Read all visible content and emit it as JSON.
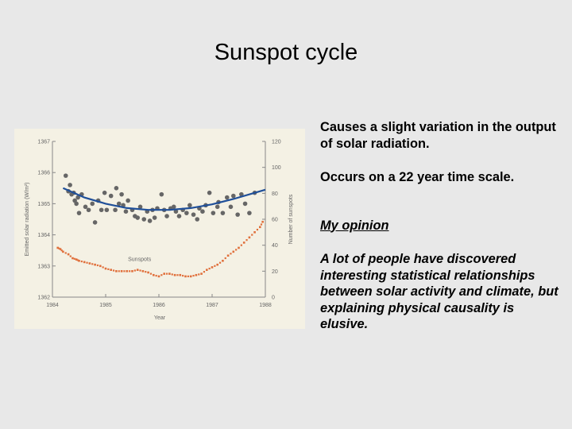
{
  "slide": {
    "title": "Sunspot cycle",
    "bullets": [
      "Causes a slight variation in the output of solar radiation.",
      "Occurs on a 22 year time scale."
    ],
    "opinion_heading": "My opinion",
    "opinion_text": "A lot of people have discovered interesting statistical relationships between solar activity and climate, but explaining physical causality is elusive."
  },
  "colors": {
    "radiation_line": "#1f4f99",
    "radiation_dots": "#666666",
    "sunspots": "#e0703c",
    "axis": "#888888",
    "panel_bg": "#f4f1e4"
  },
  "chart_data": {
    "type": "line",
    "title": "",
    "xlabel": "Year",
    "ylabel_left": "Emitted solar radiation (W/m²)",
    "ylabel_right": "Number of sunspots",
    "xlim": [
      1984,
      1988
    ],
    "ylim_left": [
      1362,
      1367
    ],
    "ylim_right": [
      0,
      120
    ],
    "x_ticks": [
      "1984",
      "1985",
      "1986",
      "1987",
      "1988"
    ],
    "y_ticks_left": [
      "1367",
      "1366",
      "1365",
      "1364",
      "1363",
      "1362"
    ],
    "y_ticks_right": [
      "120",
      "100",
      "80",
      "60",
      "40",
      "20",
      "0"
    ],
    "annotation": "Sunspots",
    "radiation_smooth": {
      "x": [
        1984.2,
        1984.6,
        1985.0,
        1985.4,
        1985.8,
        1986.2,
        1986.6,
        1987.0,
        1987.4,
        1987.8,
        1988.0
      ],
      "y": [
        1365.5,
        1365.2,
        1365.0,
        1364.86,
        1364.8,
        1364.8,
        1364.86,
        1364.98,
        1365.15,
        1365.35,
        1365.45
      ]
    },
    "radiation_observed": {
      "x": [
        1984.25,
        1984.3,
        1984.33,
        1984.36,
        1984.4,
        1984.42,
        1984.45,
        1984.48,
        1984.5,
        1984.55,
        1984.62,
        1984.68,
        1984.75,
        1984.8,
        1984.86,
        1984.92,
        1984.98,
        1985.02,
        1985.1,
        1985.18,
        1985.2,
        1985.25,
        1985.3,
        1985.33,
        1985.38,
        1985.42,
        1985.5,
        1985.55,
        1985.6,
        1985.65,
        1985.72,
        1985.78,
        1985.83,
        1985.88,
        1985.92,
        1985.97,
        1986.05,
        1986.1,
        1986.15,
        1986.22,
        1986.28,
        1986.32,
        1986.38,
        1986.45,
        1986.52,
        1986.58,
        1986.65,
        1986.72,
        1986.76,
        1986.82,
        1986.88,
        1986.95,
        1987.02,
        1987.1,
        1987.12,
        1987.2,
        1987.28,
        1987.35,
        1987.4,
        1987.48,
        1987.55,
        1987.62,
        1987.7,
        1987.8
      ],
      "y": [
        1365.9,
        1365.4,
        1365.6,
        1365.3,
        1365.35,
        1365.1,
        1365.0,
        1365.2,
        1364.7,
        1365.3,
        1364.9,
        1364.8,
        1365.0,
        1364.4,
        1365.1,
        1364.8,
        1365.35,
        1364.8,
        1365.25,
        1364.8,
        1365.5,
        1365.0,
        1365.3,
        1364.95,
        1364.75,
        1365.1,
        1364.8,
        1364.6,
        1364.55,
        1364.9,
        1364.5,
        1364.75,
        1364.45,
        1364.8,
        1364.55,
        1364.85,
        1365.3,
        1364.8,
        1364.6,
        1364.85,
        1364.9,
        1364.75,
        1364.6,
        1364.8,
        1364.7,
        1364.95,
        1364.65,
        1364.5,
        1364.85,
        1364.75,
        1364.95,
        1365.35,
        1364.7,
        1364.9,
        1365.05,
        1364.7,
        1365.2,
        1364.9,
        1365.25,
        1364.65,
        1365.3,
        1365.0,
        1364.7,
        1365.35
      ]
    },
    "sunspots": {
      "x": [
        1984.1,
        1984.15,
        1984.2,
        1984.3,
        1984.38,
        1984.45,
        1984.5,
        1984.6,
        1984.7,
        1984.8,
        1984.9,
        1985.0,
        1985.1,
        1985.2,
        1985.3,
        1985.4,
        1985.5,
        1985.6,
        1985.7,
        1985.8,
        1985.9,
        1986.0,
        1986.1,
        1986.2,
        1986.3,
        1986.4,
        1986.5,
        1986.6,
        1986.7,
        1986.8,
        1986.9,
        1987.0,
        1987.1,
        1987.2,
        1987.3,
        1987.4,
        1987.5,
        1987.6,
        1987.7,
        1987.8,
        1987.9,
        1987.95
      ],
      "y": [
        38,
        37,
        35,
        33,
        30,
        29,
        28,
        27,
        26,
        25,
        24,
        22,
        21,
        20,
        20,
        20,
        20,
        21,
        20,
        19,
        17,
        16,
        18,
        18,
        17,
        17,
        16,
        16,
        17,
        18,
        21,
        23,
        25,
        28,
        32,
        35,
        38,
        42,
        46,
        50,
        54,
        58
      ]
    }
  }
}
